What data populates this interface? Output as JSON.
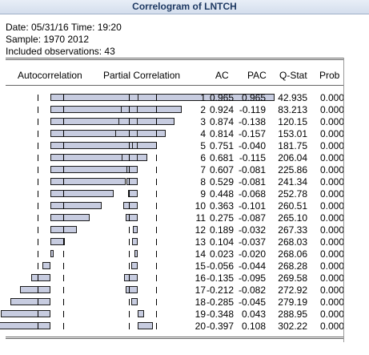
{
  "window": {
    "title": "Correlogram of LNTCH"
  },
  "info": {
    "date": "05/31/16",
    "time": "19:20",
    "sample": "1970 2012",
    "observations": "43",
    "line1": "Date: 05/31/16   Time: 19:20",
    "line2": "Sample: 1970 2012",
    "line3": "Included observations: 43"
  },
  "headers": {
    "autocorrelation": "Autocorrelation",
    "partial_correlation": "Partial Correlation",
    "ac": "AC",
    "pac": "PAC",
    "qstat": "Q-Stat",
    "prob": "Prob"
  },
  "rows": [
    {
      "lag": "1",
      "ac": "0.965",
      "pac": "0.965",
      "q": "42.935",
      "prob": "0.000"
    },
    {
      "lag": "2",
      "ac": "0.924",
      "pac": "-0.119",
      "q": "83.213",
      "prob": "0.000"
    },
    {
      "lag": "3",
      "ac": "0.874",
      "pac": "-0.138",
      "q": "120.15",
      "prob": "0.000"
    },
    {
      "lag": "4",
      "ac": "0.814",
      "pac": "-0.157",
      "q": "153.01",
      "prob": "0.000"
    },
    {
      "lag": "5",
      "ac": "0.751",
      "pac": "-0.040",
      "q": "181.75",
      "prob": "0.000"
    },
    {
      "lag": "6",
      "ac": "0.681",
      "pac": "-0.115",
      "q": "206.04",
      "prob": "0.000"
    },
    {
      "lag": "7",
      "ac": "0.607",
      "pac": "-0.081",
      "q": "225.86",
      "prob": "0.000"
    },
    {
      "lag": "8",
      "ac": "0.529",
      "pac": "-0.081",
      "q": "241.34",
      "prob": "0.000"
    },
    {
      "lag": "9",
      "ac": "0.448",
      "pac": "-0.068",
      "q": "252.78",
      "prob": "0.000"
    },
    {
      "lag": "10",
      "ac": "0.363",
      "pac": "-0.101",
      "q": "260.51",
      "prob": "0.000"
    },
    {
      "lag": "11",
      "ac": "0.275",
      "pac": "-0.087",
      "q": "265.10",
      "prob": "0.000"
    },
    {
      "lag": "12",
      "ac": "0.189",
      "pac": "-0.032",
      "q": "267.33",
      "prob": "0.000"
    },
    {
      "lag": "13",
      "ac": "0.104",
      "pac": "-0.037",
      "q": "268.03",
      "prob": "0.000"
    },
    {
      "lag": "14",
      "ac": "0.023",
      "pac": "-0.020",
      "q": "268.06",
      "prob": "0.000"
    },
    {
      "lag": "15",
      "ac": "-0.056",
      "pac": "-0.044",
      "q": "268.28",
      "prob": "0.000"
    },
    {
      "lag": "16",
      "ac": "-0.135",
      "pac": "-0.095",
      "q": "269.58",
      "prob": "0.000"
    },
    {
      "lag": "17",
      "ac": "-0.212",
      "pac": "-0.082",
      "q": "272.92",
      "prob": "0.000"
    },
    {
      "lag": "18",
      "ac": "-0.285",
      "pac": "-0.045",
      "q": "279.19",
      "prob": "0.000"
    },
    {
      "lag": "19",
      "ac": "-0.348",
      "pac": "0.043",
      "q": "288.95",
      "prob": "0.000"
    },
    {
      "lag": "20",
      "ac": "-0.397",
      "pac": "0.108",
      "q": "302.22",
      "prob": "0.000"
    }
  ],
  "colors": {
    "bar_fill": "#c7cce0",
    "bar_border": "#1b1b1b",
    "title_text": "#1f3a63"
  }
}
